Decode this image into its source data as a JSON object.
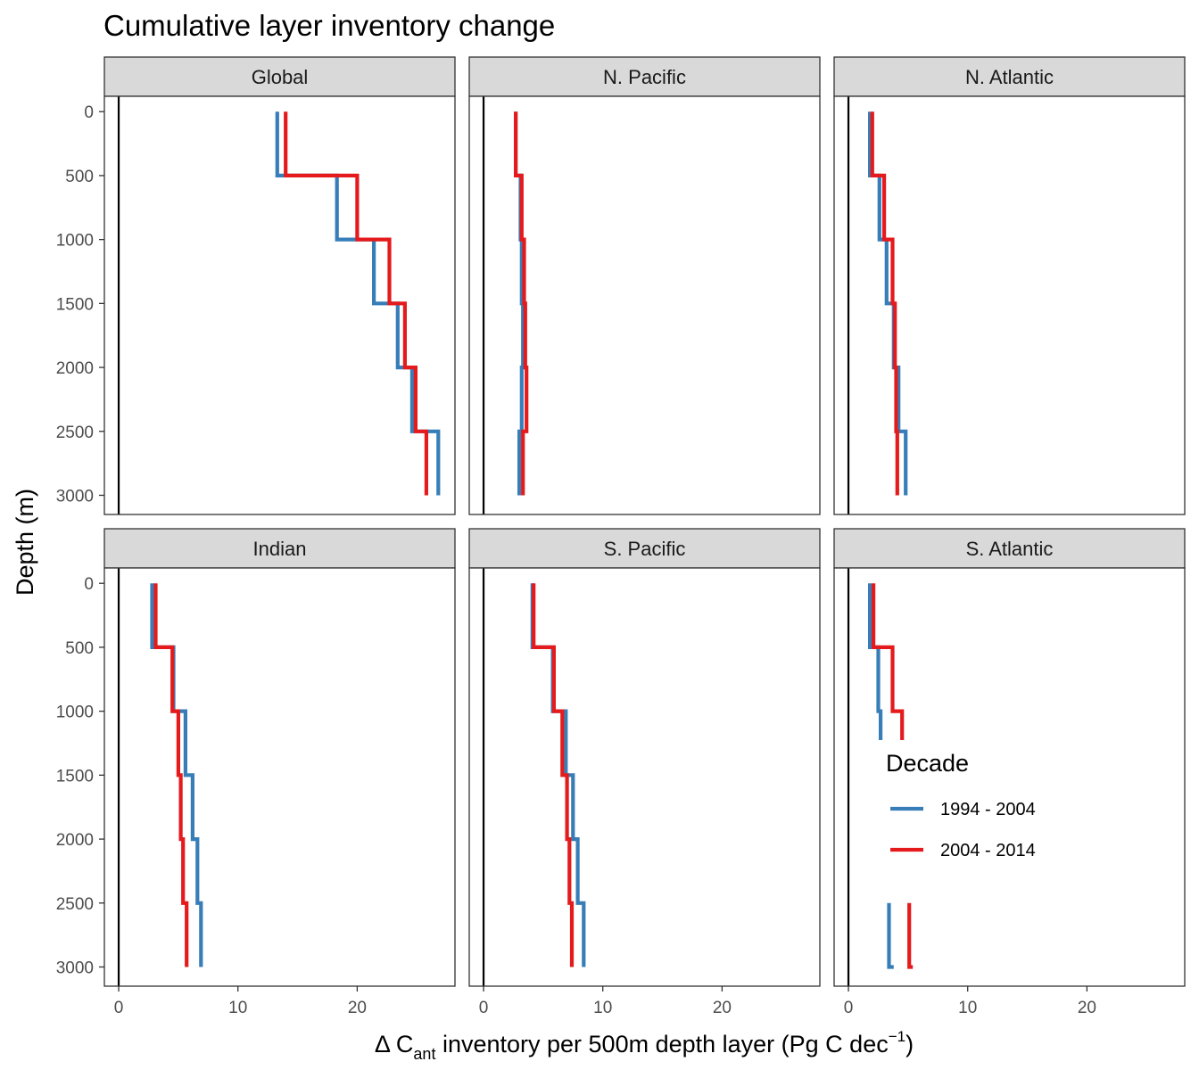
{
  "chart_data": {
    "type": "line",
    "title": "Cumulative layer inventory change",
    "xlabel": "Δ C_ant inventory per 500m depth layer (Pg C dec^-1)",
    "xlabel_parts": {
      "delta": "Δ C",
      "sub": "ant",
      "mid": " inventory per 500m depth layer (Pg C dec",
      "sup": "−1",
      "end": ")"
    },
    "ylabel": "Depth (m)",
    "xlim": [
      -1.2,
      28.2
    ],
    "ylim": [
      3150,
      -120
    ],
    "x_ticks": [
      0,
      10,
      20
    ],
    "y_ticks": [
      0,
      500,
      1000,
      1500,
      2000,
      2500,
      3000
    ],
    "depth_breaks": [
      0,
      500,
      1000,
      1500,
      2000,
      2500,
      3000
    ],
    "reference_line_x": 0,
    "legend": {
      "title": "Decade",
      "placement": "inside-bottom-right",
      "entries": [
        {
          "name": "1994 - 2004",
          "color": "#377eb8"
        },
        {
          "name": "2004 - 2014",
          "color": "#e41a1c"
        }
      ]
    },
    "panels": [
      {
        "name": "Global",
        "series": [
          {
            "name": "1994 - 2004",
            "color": "#377eb8",
            "values": [
              13.3,
              18.3,
              21.4,
              23.4,
              24.6,
              26.8
            ]
          },
          {
            "name": "2004 - 2014",
            "color": "#e41a1c",
            "values": [
              14.0,
              20.0,
              22.7,
              24.0,
              24.9,
              25.8
            ]
          }
        ]
      },
      {
        "name": "N. Pacific",
        "series": [
          {
            "name": "1994 - 2004",
            "color": "#377eb8",
            "values": [
              2.7,
              3.1,
              3.2,
              3.3,
              3.2,
              3.0
            ]
          },
          {
            "name": "2004 - 2014",
            "color": "#e41a1c",
            "values": [
              2.7,
              3.2,
              3.4,
              3.5,
              3.6,
              3.3
            ]
          }
        ]
      },
      {
        "name": "N. Atlantic",
        "series": [
          {
            "name": "1994 - 2004",
            "color": "#377eb8",
            "values": [
              1.8,
              2.6,
              3.2,
              3.8,
              4.2,
              4.8
            ]
          },
          {
            "name": "2004 - 2014",
            "color": "#e41a1c",
            "values": [
              2.0,
              3.0,
              3.7,
              3.9,
              4.0,
              4.1
            ]
          }
        ]
      },
      {
        "name": "Indian",
        "series": [
          {
            "name": "1994 - 2004",
            "color": "#377eb8",
            "values": [
              2.8,
              4.6,
              5.6,
              6.2,
              6.6,
              6.9
            ]
          },
          {
            "name": "2004 - 2014",
            "color": "#e41a1c",
            "values": [
              3.1,
              4.5,
              5.0,
              5.2,
              5.4,
              5.7
            ]
          }
        ]
      },
      {
        "name": "S. Pacific",
        "series": [
          {
            "name": "1994 - 2004",
            "color": "#377eb8",
            "values": [
              4.1,
              5.8,
              6.9,
              7.5,
              7.9,
              8.4
            ]
          },
          {
            "name": "2004 - 2014",
            "color": "#e41a1c",
            "values": [
              4.2,
              5.9,
              6.6,
              7.0,
              7.2,
              7.4
            ]
          }
        ]
      },
      {
        "name": "S. Atlantic",
        "series": [
          {
            "name": "1994 - 2004",
            "color": "#377eb8",
            "values": [
              1.8,
              2.5,
              2.7,
              null,
              null,
              3.4,
              3.8
            ],
            "partial": true
          },
          {
            "name": "2004 - 2014",
            "color": "#e41a1c",
            "values": [
              2.1,
              3.7,
              4.5,
              null,
              null,
              5.1,
              5.4
            ],
            "partial": true
          }
        ]
      }
    ]
  }
}
